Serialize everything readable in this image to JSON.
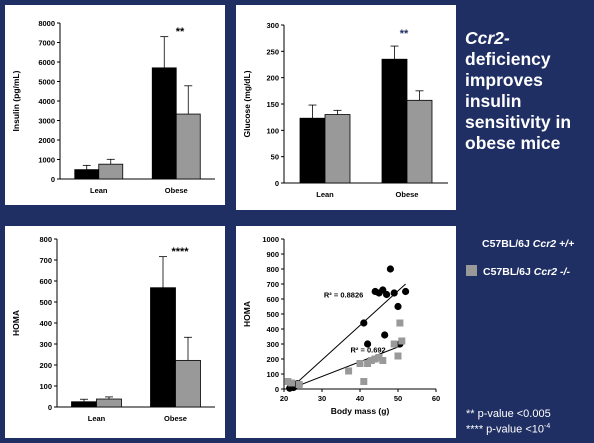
{
  "headline": {
    "gene": "Ccr2-",
    "rest": "deficiency improves insulin sensitivity in obese mice"
  },
  "legend": [
    {
      "prefix": "C57BL/6J",
      "gene": "Ccr2 +/+",
      "color": "#000000",
      "show_swatch": false
    },
    {
      "prefix": "C57BL/6J",
      "gene": "Ccr2 -/-",
      "color": "#999999",
      "show_swatch": true
    }
  ],
  "pvalues": [
    {
      "marker": "**",
      "text": " p-value <0.005",
      "sup": ""
    },
    {
      "marker": "****",
      "text": " p-value <10",
      "sup": "-4"
    }
  ],
  "colors": {
    "background": "#1f2e63",
    "wt": "#000000",
    "ko": "#999999",
    "stars_blue": "#1f2e63"
  },
  "chart_data": [
    {
      "type": "bar",
      "ylabel": "Insulin (pg/mL)",
      "categories": [
        "Lean",
        "Obese"
      ],
      "series": [
        {
          "name": "Ccr2 +/+",
          "values": [
            480,
            5700
          ],
          "errors": [
            220,
            1600
          ]
        },
        {
          "name": "Ccr2 -/-",
          "values": [
            760,
            3330
          ],
          "errors": [
            250,
            1450
          ]
        }
      ],
      "ylim": [
        0,
        8000
      ],
      "yticks": [
        0,
        1000,
        2000,
        3000,
        4000,
        5000,
        6000,
        7000,
        8000
      ],
      "significance": "**",
      "significance_color": "#000000"
    },
    {
      "type": "bar",
      "ylabel": "Glucose (mg/dL)",
      "categories": [
        "Lean",
        "Obese"
      ],
      "series": [
        {
          "name": "Ccr2 +/+",
          "values": [
            123,
            235
          ],
          "errors": [
            25,
            25
          ]
        },
        {
          "name": "Ccr2 -/-",
          "values": [
            130,
            157
          ],
          "errors": [
            8,
            18
          ]
        }
      ],
      "ylim": [
        0,
        300
      ],
      "yticks": [
        0,
        50,
        100,
        150,
        200,
        250,
        300
      ],
      "significance": "**",
      "significance_color": "#1f2e63"
    },
    {
      "type": "bar",
      "ylabel": "HOMA",
      "categories": [
        "Lean",
        "Obese"
      ],
      "series": [
        {
          "name": "Ccr2 +/+",
          "values": [
            25,
            568
          ],
          "errors": [
            12,
            148
          ]
        },
        {
          "name": "Ccr2 -/-",
          "values": [
            38,
            222
          ],
          "errors": [
            10,
            110
          ]
        }
      ],
      "ylim": [
        0,
        800
      ],
      "yticks": [
        0,
        100,
        200,
        300,
        400,
        500,
        600,
        700,
        800
      ],
      "significance": "****",
      "significance_color": "#000000"
    },
    {
      "type": "scatter",
      "xlabel": "Body mass (g)",
      "ylabel": "HOMA",
      "xlim": [
        20,
        60
      ],
      "ylim": [
        0,
        1000
      ],
      "xticks": [
        20,
        30,
        40,
        50,
        60
      ],
      "yticks": [
        0,
        100,
        200,
        300,
        400,
        500,
        600,
        700,
        800,
        900,
        1000
      ],
      "series": [
        {
          "name": "Ccr2 +/+",
          "marker": "circle",
          "points": [
            [
              21.5,
              5
            ],
            [
              22,
              20
            ],
            [
              23,
              25
            ],
            [
              23.5,
              35
            ],
            [
              24,
              30
            ],
            [
              22.5,
              10
            ],
            [
              41,
              440
            ],
            [
              42,
              300
            ],
            [
              44,
              650
            ],
            [
              45,
              640
            ],
            [
              46,
              660
            ],
            [
              46.5,
              360
            ],
            [
              47,
              630
            ],
            [
              48,
              800
            ],
            [
              49,
              640
            ],
            [
              50,
              550
            ],
            [
              50.5,
              300
            ],
            [
              52,
              650
            ]
          ],
          "trend": {
            "label": "R² = 0.8826",
            "from": [
              22,
              10
            ],
            "to": [
              52,
              700
            ]
          }
        },
        {
          "name": "Ccr2 -/-",
          "marker": "square",
          "points": [
            [
              21,
              50
            ],
            [
              22,
              40
            ],
            [
              24,
              30
            ],
            [
              37,
              120
            ],
            [
              40,
              170
            ],
            [
              41,
              50
            ],
            [
              42,
              170
            ],
            [
              43,
              190
            ],
            [
              44,
              200
            ],
            [
              45,
              210
            ],
            [
              46,
              190
            ],
            [
              49,
              300
            ],
            [
              50,
              220
            ],
            [
              50.5,
              440
            ],
            [
              51,
              320
            ]
          ],
          "trend": {
            "label": "R² = 0.692",
            "from": [
              22,
              5
            ],
            "to": [
              51,
              290
            ]
          }
        }
      ]
    }
  ]
}
